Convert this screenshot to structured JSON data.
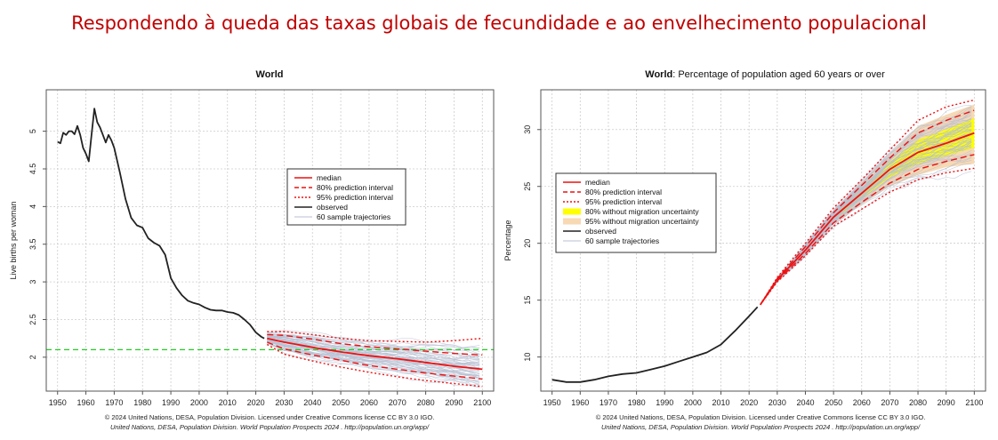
{
  "page": {
    "title": "Respondendo à queda das taxas globais de fecundidade e ao envelhecimento populacional"
  },
  "colors": {
    "title": "#c00000",
    "median": "#ee1111",
    "observed": "#222222",
    "samples": "#b8bfd2",
    "band80": "#ffff00",
    "band95": "#f7d9b4",
    "replacement": "#22cc22",
    "grid": "#cccccc"
  },
  "chart_data": [
    {
      "type": "line",
      "title": "World",
      "ylabel": "Live births per woman",
      "xlabel": "",
      "xlim": [
        1946,
        2104
      ],
      "ylim": [
        1.55,
        5.55
      ],
      "x_ticks": [
        1950,
        1960,
        1970,
        1980,
        1990,
        2000,
        2010,
        2020,
        2030,
        2040,
        2050,
        2060,
        2070,
        2080,
        2090,
        2100
      ],
      "y_ticks": [
        2,
        2.5,
        3,
        3.5,
        4,
        4.5,
        5
      ],
      "y_tick_labels": [
        "2",
        "2.5",
        "3",
        "3.5",
        "4",
        "4.5",
        "5"
      ],
      "grid": true,
      "legend_position": "center-right",
      "legend": [
        "median",
        "80% prediction interval",
        "95% prediction interval",
        "observed",
        "60 sample trajectories"
      ],
      "reference_line": {
        "y": 2.1,
        "style": "dashed",
        "color": "#22cc22"
      },
      "observed": {
        "x": [
          1950,
          1951,
          1952,
          1953,
          1954,
          1955,
          1956,
          1957,
          1958,
          1959,
          1960,
          1961,
          1962,
          1963,
          1964,
          1965,
          1966,
          1967,
          1968,
          1969,
          1970,
          1972,
          1974,
          1976,
          1978,
          1980,
          1982,
          1984,
          1986,
          1988,
          1990,
          1992,
          1994,
          1996,
          1998,
          2000,
          2002,
          2004,
          2006,
          2008,
          2010,
          2012,
          2014,
          2016,
          2018,
          2020,
          2022,
          2023
        ],
        "y": [
          4.86,
          4.84,
          4.98,
          4.95,
          5.0,
          5.0,
          4.96,
          5.07,
          4.95,
          4.78,
          4.7,
          4.6,
          4.95,
          5.3,
          5.12,
          5.05,
          4.95,
          4.85,
          4.95,
          4.88,
          4.78,
          4.45,
          4.1,
          3.85,
          3.75,
          3.72,
          3.58,
          3.52,
          3.48,
          3.36,
          3.05,
          2.92,
          2.82,
          2.75,
          2.72,
          2.7,
          2.66,
          2.63,
          2.62,
          2.62,
          2.6,
          2.59,
          2.56,
          2.5,
          2.43,
          2.33,
          2.27,
          2.25
        ]
      },
      "forecast_x": [
        2024,
        2030,
        2040,
        2050,
        2060,
        2070,
        2080,
        2090,
        2100
      ],
      "median": [
        2.25,
        2.2,
        2.13,
        2.07,
        2.02,
        1.98,
        1.93,
        1.88,
        1.84
      ],
      "pi80": {
        "lower": [
          2.2,
          2.11,
          2.03,
          1.96,
          1.89,
          1.84,
          1.79,
          1.75,
          1.71
        ],
        "upper": [
          2.3,
          2.29,
          2.24,
          2.18,
          2.14,
          2.11,
          2.08,
          2.05,
          2.03
        ]
      },
      "pi95": {
        "lower": [
          2.17,
          2.04,
          1.95,
          1.87,
          1.8,
          1.74,
          1.69,
          1.65,
          1.61
        ],
        "upper": [
          2.34,
          2.34,
          2.3,
          2.25,
          2.22,
          2.21,
          2.2,
          2.22,
          2.25
        ]
      },
      "sample_trajectories": 60,
      "credit_lines": [
        "© 2024 United Nations, DESA, Population Division. Licensed under Creative Commons license CC BY 3.0 IGO.",
        "United Nations, DESA, Population Division. World Population Prospects 2024 . http://population.un.org/wpp/"
      ]
    },
    {
      "type": "line",
      "title": "World",
      "subtitle": ": Percentage of population aged 60 years or over",
      "ylabel": "Percentage",
      "xlabel": "",
      "xlim": [
        1946,
        2104
      ],
      "ylim": [
        7,
        33.5
      ],
      "x_ticks": [
        1950,
        1960,
        1970,
        1980,
        1990,
        2000,
        2010,
        2020,
        2030,
        2040,
        2050,
        2060,
        2070,
        2080,
        2090,
        2100
      ],
      "y_ticks": [
        10,
        15,
        20,
        25,
        30
      ],
      "y_tick_labels": [
        "10",
        "15",
        "20",
        "25",
        "30"
      ],
      "grid": true,
      "legend_position": "center-left",
      "legend": [
        "median",
        "80% prediction interval",
        "95% prediction interval",
        "80% without migration uncertainty",
        "95% without migration uncertainty",
        "observed",
        "60 sample trajectories"
      ],
      "observed": {
        "x": [
          1950,
          1955,
          1960,
          1965,
          1970,
          1975,
          1980,
          1985,
          1990,
          1995,
          2000,
          2005,
          2010,
          2015,
          2020,
          2023
        ],
        "y": [
          8.0,
          7.8,
          7.8,
          8.0,
          8.3,
          8.5,
          8.6,
          8.9,
          9.2,
          9.6,
          10.0,
          10.4,
          11.1,
          12.3,
          13.6,
          14.4
        ]
      },
      "forecast_x": [
        2024,
        2030,
        2040,
        2050,
        2060,
        2070,
        2080,
        2090,
        2100
      ],
      "median": [
        14.6,
        16.8,
        19.4,
        22.3,
        24.4,
        26.5,
        28.0,
        28.8,
        29.7
      ],
      "pi80": {
        "lower": [
          14.6,
          16.7,
          19.1,
          21.8,
          23.6,
          25.3,
          26.5,
          27.2,
          27.8
        ],
        "upper": [
          14.6,
          16.9,
          19.7,
          22.7,
          25.1,
          27.5,
          29.7,
          30.8,
          31.7
        ]
      },
      "pi95": {
        "lower": [
          14.6,
          16.6,
          18.9,
          21.5,
          23.0,
          24.5,
          25.6,
          26.2,
          26.6
        ],
        "upper": [
          14.6,
          17.0,
          20.0,
          23.1,
          25.6,
          28.2,
          30.8,
          32.0,
          32.6
        ]
      },
      "pi80_no_migration": {
        "lower": [
          14.6,
          16.7,
          19.2,
          22.0,
          23.9,
          25.8,
          27.0,
          27.7,
          28.4
        ],
        "upper": [
          14.6,
          16.9,
          19.6,
          22.6,
          24.9,
          27.2,
          29.1,
          30.0,
          31.0
        ]
      },
      "pi95_no_migration": {
        "lower": [
          14.6,
          16.65,
          19.0,
          21.7,
          23.4,
          25.0,
          26.0,
          26.7,
          27.0
        ],
        "upper": [
          14.6,
          16.95,
          19.9,
          22.9,
          25.4,
          27.9,
          30.3,
          31.3,
          32.2
        ]
      },
      "sample_trajectories": 60,
      "credit_lines": [
        "© 2024 United Nations, DESA, Population Division. Licensed under Creative Commons license CC BY 3.0 IGO.",
        "United Nations, DESA, Population Division. World Population Prospects 2024 . http://population.un.org/wpp/"
      ]
    }
  ]
}
